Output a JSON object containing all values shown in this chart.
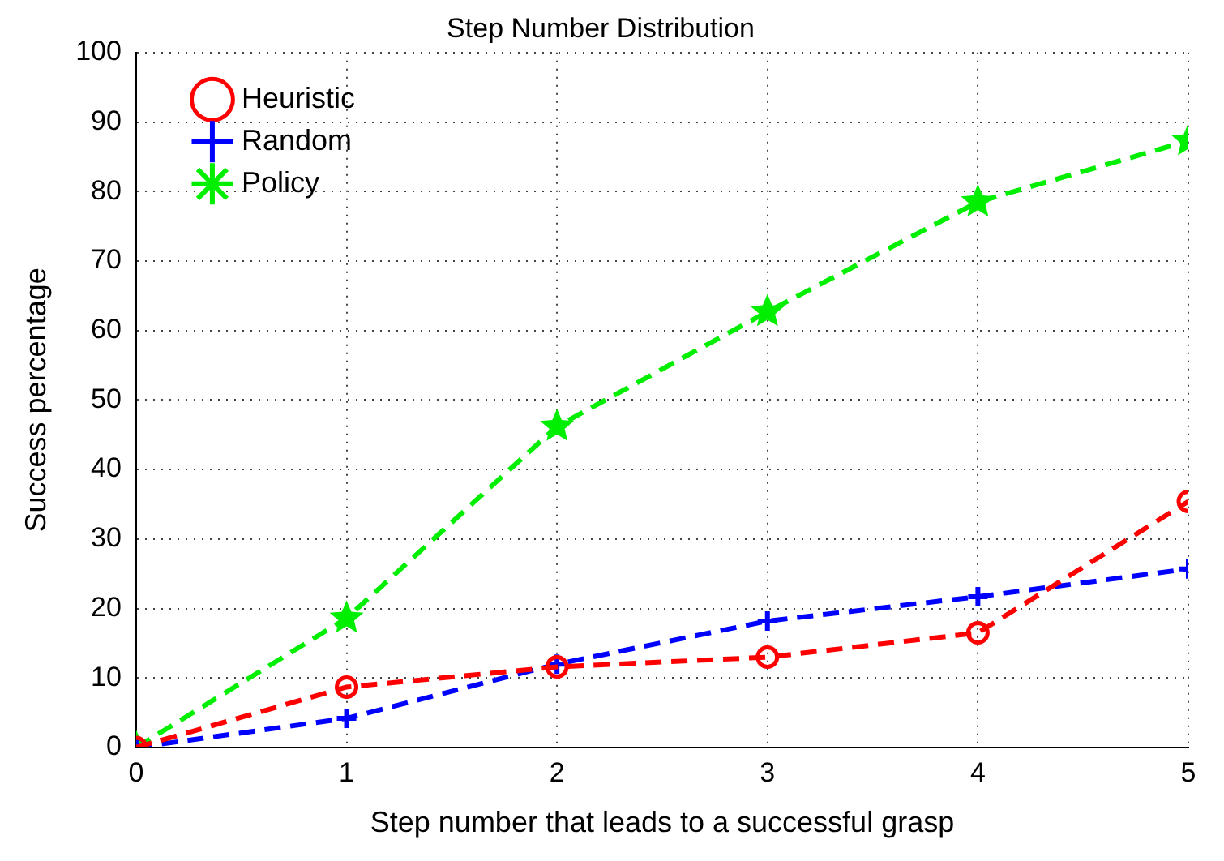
{
  "chart_data": {
    "type": "line",
    "title": "Step Number Distribution",
    "xlabel": "Step number that leads to a successful grasp",
    "ylabel": "Success percentage",
    "x": [
      0,
      1,
      2,
      3,
      4,
      5
    ],
    "series": [
      {
        "name": "Heuristic",
        "color": "#ff0000",
        "marker": "circle",
        "values": [
          0,
          8.7,
          11.6,
          13.0,
          16.5,
          35.4
        ]
      },
      {
        "name": "Random",
        "color": "#0000ff",
        "marker": "cross",
        "values": [
          0,
          4.2,
          12.0,
          18.2,
          21.7,
          25.7
        ]
      },
      {
        "name": "Policy",
        "color": "#00ee00",
        "marker": "star",
        "values": [
          0,
          18.6,
          46.2,
          62.7,
          78.5,
          87.3
        ]
      }
    ],
    "xlim": [
      0,
      5
    ],
    "xticks": [
      0,
      1,
      2,
      3,
      4,
      5
    ],
    "ylim": [
      0,
      100
    ],
    "yticks": [
      0,
      10,
      20,
      30,
      40,
      50,
      60,
      70,
      80,
      90,
      100
    ],
    "grid": true,
    "legend": "top left",
    "line_style": "dashed"
  }
}
